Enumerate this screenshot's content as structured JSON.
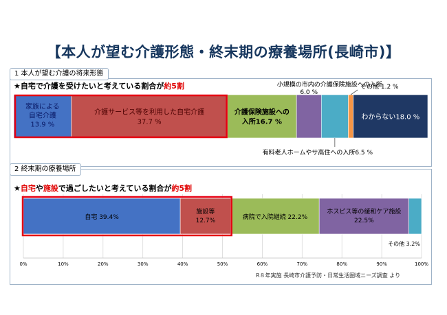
{
  "title": "【本人が望む介護形態・終末期の療養場所(長崎市)】",
  "section1": {
    "tab": "1 本人が望む介護の将来形態",
    "headline_prefix": "★自宅で介護を受けたいと考えている割合が",
    "headline_highlight": "約5割"
  },
  "section2": {
    "tab": "2 終末期の療養場所",
    "headline_star": "★",
    "headline_hl1": "自宅",
    "headline_mid": "や",
    "headline_hl2": "施設",
    "headline_suffix": "で過ごしたいと考えている割合が",
    "headline_highlight": "約5割"
  },
  "source": "R８年実施 長崎市介護予防・日常生活圏域ニーズ調査 より",
  "colors": {
    "red_frame": "#e60012"
  },
  "chart_data": [
    {
      "type": "bar",
      "orientation": "horizontal",
      "stacked": true,
      "series": [
        {
          "name": "家族による自宅介護",
          "value": 13.9,
          "labels": [
            "家族による",
            "自宅介護",
            "13.9 %"
          ],
          "color": "#4472c4"
        },
        {
          "name": "介護サービス等を利用した自宅介護",
          "value": 37.7,
          "labels": [
            "介護サービス等を利用した自宅介護",
            "37.7 %"
          ],
          "color": "#c0504d"
        },
        {
          "name": "介護保険施設への入所",
          "value": 16.7,
          "labels": [
            "介護保険施設への",
            "入所16.7 %"
          ],
          "color": "#9bbb59"
        },
        {
          "name": "小規模の市内の介護保険施設への入所",
          "value": 6.0,
          "labels": [
            "小規模の市内の介護保険施設への入所",
            "6.0 %"
          ],
          "color": "#8064a2"
        },
        {
          "name": "有料老人ホームやサ高住への入所",
          "value": 6.5,
          "labels": [
            "有料老人ホームやサ高住への入所6.5 %"
          ],
          "color": "#4bacc6"
        },
        {
          "name": "その他",
          "value": 1.2,
          "labels": [
            "その他 1.2 %"
          ],
          "color": "#f79646"
        },
        {
          "name": "わからない",
          "value": 18.0,
          "labels": [
            "わからない18.0 %"
          ],
          "color": "#1f3864"
        }
      ],
      "xlim": [
        0,
        100
      ]
    },
    {
      "type": "bar",
      "orientation": "horizontal",
      "stacked": true,
      "series": [
        {
          "name": "自宅",
          "value": 39.4,
          "labels": [
            "自宅 39.4%"
          ],
          "color": "#4472c4"
        },
        {
          "name": "施設等",
          "value": 12.7,
          "labels": [
            "施設等",
            "12.7%"
          ],
          "color": "#c0504d"
        },
        {
          "name": "病院で入院継続",
          "value": 22.2,
          "labels": [
            "病院で入院継続 22.2%"
          ],
          "color": "#9bbb59"
        },
        {
          "name": "ホスピス等の緩和ケア施設",
          "value": 22.5,
          "labels": [
            "ホスピス等の緩和ケア施設",
            "22.5%"
          ],
          "color": "#8064a2"
        },
        {
          "name": "その他",
          "value": 3.2,
          "labels": [
            "その他 3.2%"
          ],
          "color": "#4bacc6"
        }
      ],
      "xlim": [
        0,
        100
      ],
      "xticks": [
        "0%",
        "10%",
        "20%",
        "30%",
        "40%",
        "50%",
        "60%",
        "70%",
        "80%",
        "90%",
        "100%"
      ]
    }
  ]
}
